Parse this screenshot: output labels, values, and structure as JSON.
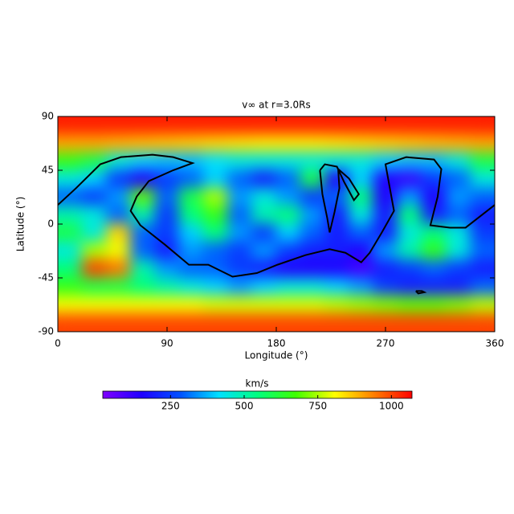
{
  "chart_data": {
    "type": "heatmap",
    "title": "v∞ at r=3.0Rs",
    "x_label": "Longitude (°)",
    "y_label": "Latitude (°)",
    "xlim": [
      0,
      360
    ],
    "ylim": [
      -90,
      90
    ],
    "xticks": [
      0,
      90,
      180,
      270,
      360
    ],
    "yticks": [
      -90,
      -45,
      0,
      45,
      90
    ],
    "x": [
      10,
      30,
      50,
      70,
      90,
      110,
      130,
      150,
      170,
      190,
      210,
      230,
      250,
      270,
      290,
      310,
      330,
      350
    ],
    "y": [
      82.5,
      67.5,
      52.5,
      37.5,
      22.5,
      7.5,
      -7.5,
      -22.5,
      -37.5,
      -52.5,
      -67.5,
      -82.5
    ],
    "z": [
      [
        1040,
        1040,
        1040,
        1040,
        1040,
        1040,
        1040,
        1040,
        1040,
        1040,
        1040,
        1040,
        1040,
        1040,
        1040,
        1040,
        1040,
        1040
      ],
      [
        900,
        900,
        890,
        880,
        870,
        860,
        850,
        840,
        830,
        830,
        830,
        840,
        850,
        860,
        870,
        880,
        890,
        900
      ],
      [
        650,
        600,
        450,
        400,
        380,
        380,
        420,
        450,
        450,
        450,
        450,
        450,
        450,
        400,
        380,
        380,
        450,
        600
      ],
      [
        450,
        400,
        250,
        150,
        250,
        300,
        400,
        300,
        200,
        300,
        600,
        150,
        400,
        150,
        120,
        250,
        300,
        450
      ],
      [
        300,
        250,
        350,
        700,
        300,
        600,
        750,
        350,
        450,
        350,
        250,
        300,
        550,
        150,
        350,
        150,
        350,
        300
      ],
      [
        500,
        450,
        300,
        500,
        250,
        550,
        650,
        300,
        500,
        550,
        350,
        200,
        450,
        200,
        550,
        200,
        300,
        200
      ],
      [
        600,
        450,
        850,
        300,
        250,
        400,
        550,
        350,
        250,
        400,
        300,
        200,
        300,
        200,
        450,
        550,
        450,
        250
      ],
      [
        450,
        750,
        800,
        300,
        200,
        350,
        300,
        250,
        350,
        250,
        200,
        200,
        150,
        350,
        500,
        650,
        450,
        300
      ],
      [
        550,
        1000,
        950,
        500,
        350,
        300,
        300,
        250,
        200,
        150,
        150,
        150,
        100,
        200,
        250,
        300,
        250,
        200
      ],
      [
        650,
        600,
        600,
        550,
        500,
        450,
        400,
        350,
        400,
        450,
        450,
        400,
        350,
        250,
        200,
        200,
        200,
        300
      ],
      [
        800,
        800,
        800,
        800,
        800,
        800,
        780,
        780,
        780,
        780,
        780,
        760,
        740,
        720,
        700,
        700,
        720,
        760
      ],
      [
        1000,
        1000,
        1000,
        1000,
        1000,
        1000,
        1000,
        1000,
        1000,
        1000,
        1000,
        1000,
        1000,
        1000,
        1000,
        1000,
        1000,
        1000
      ]
    ],
    "colormap": [
      "#8000ff",
      "#2000ff",
      "#0050ff",
      "#00e0ff",
      "#00ff80",
      "#40ff00",
      "#ffff00",
      "#ff8000",
      "#ff0000"
    ],
    "colorbar": {
      "label": "km/s",
      "lim": [
        20,
        1070
      ],
      "ticks": [
        250,
        500,
        750,
        1000
      ]
    },
    "contour_color": "#000000",
    "contours": [
      {
        "lon": [
          0,
          15,
          35,
          52,
          78,
          95,
          111,
          95,
          75,
          65,
          60,
          68,
          88,
          108,
          124,
          144,
          164,
          181,
          204,
          224,
          237,
          250,
          257,
          267,
          277,
          270,
          287,
          310,
          316,
          313,
          307,
          323,
          336,
          360
        ],
        "lat": [
          16,
          30,
          50,
          56,
          58,
          56,
          51,
          45,
          36,
          23,
          11,
          -1,
          -17,
          -34,
          -34,
          -44,
          -41,
          -34,
          -26,
          -21,
          -24,
          -32,
          -24,
          -7,
          11,
          50,
          56,
          54,
          46,
          23,
          -1,
          -3,
          -3,
          16
        ]
      },
      {
        "lon": [
          216,
          218,
          222,
          224,
          228,
          232,
          231,
          240,
          248,
          244,
          236,
          230,
          220,
          216
        ],
        "lat": [
          45,
          25,
          5,
          -7,
          10,
          30,
          46,
          38,
          25,
          20,
          35,
          48,
          50,
          45
        ]
      },
      {
        "lon": [
          295,
          300,
          302,
          297,
          295
        ],
        "lat": [
          -56,
          -56,
          -57,
          -58,
          -56
        ]
      }
    ]
  }
}
